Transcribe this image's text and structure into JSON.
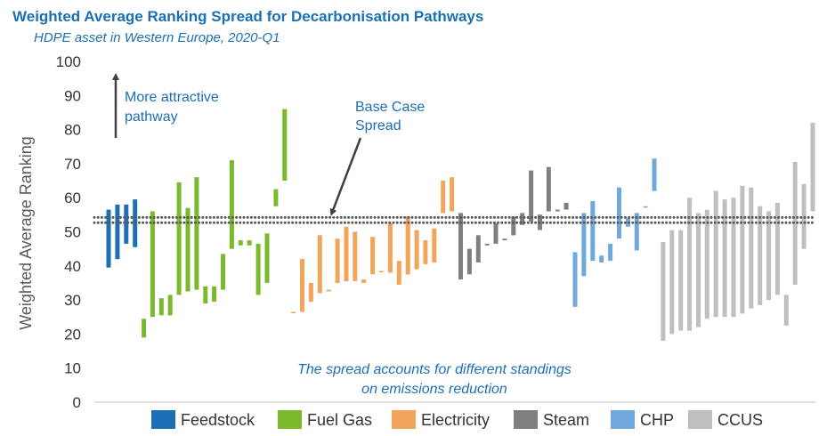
{
  "chart_data": {
    "type": "bar",
    "subtype": "floating-range",
    "title": "Weighted Average Ranking Spread for Decarbonisation Pathways",
    "subtitle": "HDPE asset in Western Europe, 2020-Q1",
    "ylabel": "Weighted Average Ranking",
    "xlabel": "",
    "ylim": [
      0,
      100
    ],
    "yticks": [
      0,
      10,
      20,
      30,
      40,
      50,
      60,
      70,
      80,
      90,
      100
    ],
    "baseline": {
      "label": "Base Case Spread",
      "low": 52.7,
      "high": 54.2
    },
    "annotations": {
      "attractive_line1": "More attractive",
      "attractive_line2": "pathway",
      "base_line1": "Base Case",
      "base_line2": "Spread",
      "note_line1": "The spread accounts for different standings",
      "note_line2": "on emissions reduction"
    },
    "colors": {
      "Feedstock": "#1b6fb5",
      "Fuel Gas": "#7ab929",
      "Electricity": "#f2a45a",
      "Steam": "#7f7f7f",
      "CHP": "#6fa8dc",
      "CCUS": "#bfbfbf",
      "baseline_dots": "#595959",
      "arrow": "#404040"
    },
    "series": [
      {
        "name": "Feedstock",
        "ranges": [
          [
            39.5,
            56.5
          ],
          [
            42,
            58
          ],
          [
            46.5,
            58
          ],
          [
            45.5,
            59.5
          ]
        ]
      },
      {
        "name": "Fuel Gas",
        "ranges": [
          [
            19,
            24.5
          ],
          [
            25,
            56
          ],
          [
            25.5,
            30.5
          ],
          [
            25.5,
            31.5
          ],
          [
            31.5,
            64.5
          ],
          [
            32.5,
            57
          ],
          [
            33,
            66
          ],
          [
            29,
            34
          ],
          [
            29.5,
            34
          ],
          [
            33,
            43.5
          ],
          [
            45,
            71
          ],
          [
            46,
            47.5
          ],
          [
            46,
            47.5
          ],
          [
            31.5,
            46.5
          ],
          [
            35,
            49.5
          ],
          [
            57.5,
            62.5
          ],
          [
            65,
            86
          ]
        ]
      },
      {
        "name": "Electricity",
        "ranges": [
          [
            26.5,
            26.5
          ],
          [
            26.5,
            42
          ],
          [
            29.5,
            35
          ],
          [
            32,
            49
          ],
          [
            32.5,
            33
          ],
          [
            35,
            48
          ],
          [
            35.5,
            51.5
          ],
          [
            35.5,
            50
          ],
          [
            35,
            36
          ],
          [
            37.5,
            48.5
          ],
          [
            38.5,
            38.5
          ],
          [
            38,
            52.5
          ],
          [
            34.5,
            41.5
          ],
          [
            37.5,
            54.5
          ],
          [
            39,
            50.5
          ],
          [
            40.5,
            47.5
          ],
          [
            41,
            51
          ],
          [
            55.5,
            65
          ],
          [
            56,
            66
          ]
        ]
      },
      {
        "name": "Steam",
        "ranges": [
          [
            36,
            55.5
          ],
          [
            37.5,
            45
          ],
          [
            41,
            49
          ],
          [
            46,
            46.5
          ],
          [
            46.5,
            52.5
          ],
          [
            47.5,
            48
          ],
          [
            49,
            54.5
          ],
          [
            52,
            55.5
          ],
          [
            53,
            68
          ],
          [
            50.5,
            55
          ],
          [
            56,
            69
          ],
          [
            56,
            56.5
          ],
          [
            56.5,
            58.5
          ]
        ]
      },
      {
        "name": "CHP",
        "ranges": [
          [
            28,
            44
          ],
          [
            37,
            55.5
          ],
          [
            41.5,
            59
          ],
          [
            41,
            43
          ],
          [
            41.5,
            46.5
          ],
          [
            48,
            63
          ],
          [
            51.5,
            54
          ],
          [
            44.5,
            55.5
          ],
          [
            57.5,
            57.5
          ],
          [
            62,
            71.5
          ]
        ]
      },
      {
        "name": "CCUS",
        "ranges": [
          [
            18,
            47
          ],
          [
            20,
            50.5
          ],
          [
            21,
            50.5
          ],
          [
            21,
            60
          ],
          [
            22,
            55.5
          ],
          [
            24.5,
            56.5
          ],
          [
            25,
            62
          ],
          [
            25,
            59.5
          ],
          [
            25,
            60
          ],
          [
            26,
            63.5
          ],
          [
            27.5,
            63
          ],
          [
            28.5,
            57.5
          ],
          [
            30,
            56
          ],
          [
            31.5,
            58.5
          ],
          [
            22.5,
            31.5
          ],
          [
            34.5,
            70.5
          ],
          [
            45,
            64
          ],
          [
            56,
            82
          ]
        ]
      }
    ]
  },
  "legend": {
    "items": [
      {
        "label": "Feedstock",
        "color": "#1b6fb5"
      },
      {
        "label": "Fuel Gas",
        "color": "#7ab929"
      },
      {
        "label": "Electricity",
        "color": "#f2a45a"
      },
      {
        "label": "Steam",
        "color": "#7f7f7f"
      },
      {
        "label": "CHP",
        "color": "#6fa8dc"
      },
      {
        "label": "CCUS",
        "color": "#bfbfbf"
      }
    ]
  }
}
